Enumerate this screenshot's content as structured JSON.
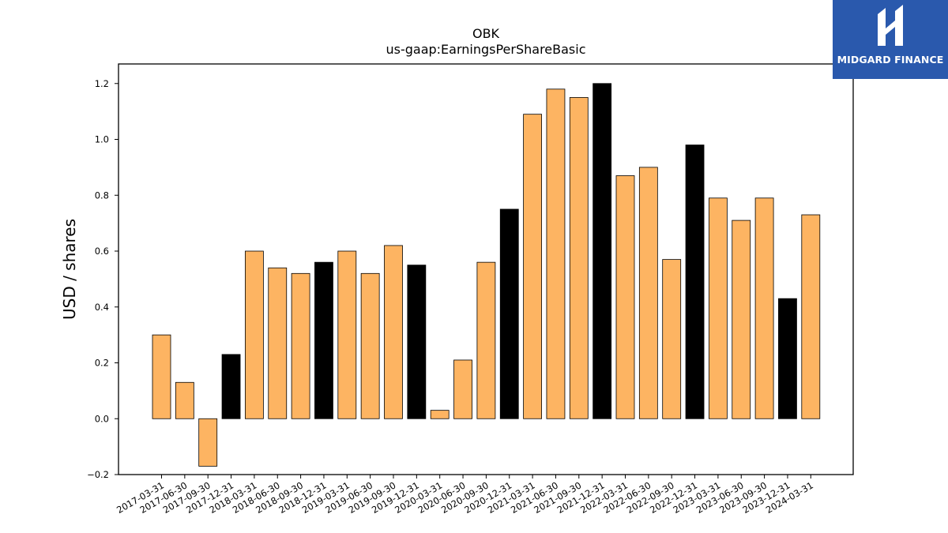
{
  "logo": {
    "text": "MIDGARD FINANCE",
    "bg_color": "#2a59ad",
    "mark_icon": "midgard-mark-icon"
  },
  "chart_data": {
    "type": "bar",
    "title": "OBK",
    "subtitle": "us-gaap:EarningsPerShareBasic",
    "xlabel": "",
    "ylabel": "USD / shares",
    "ylim": [
      -0.2,
      1.27
    ],
    "yticks": [
      -0.2,
      0.0,
      0.2,
      0.4,
      0.6,
      0.8,
      1.0,
      1.2
    ],
    "ytick_labels": [
      "−0.2",
      "0.0",
      "0.2",
      "0.4",
      "0.6",
      "0.8",
      "1.0",
      "1.2"
    ],
    "grid": false,
    "colors": {
      "quarter": "#fdb462",
      "year_end": "#000000",
      "edge": "#000000"
    },
    "categories": [
      "2017-03-31",
      "2017-06-30",
      "2017-09-30",
      "2017-12-31",
      "2018-03-31",
      "2018-06-30",
      "2018-09-30",
      "2018-12-31",
      "2019-03-31",
      "2019-06-30",
      "2019-09-30",
      "2019-12-31",
      "2020-03-31",
      "2020-06-30",
      "2020-09-30",
      "2020-12-31",
      "2021-03-31",
      "2021-06-30",
      "2021-09-30",
      "2021-12-31",
      "2022-03-31",
      "2022-06-30",
      "2022-09-30",
      "2022-12-31",
      "2023-03-31",
      "2023-06-30",
      "2023-09-30",
      "2023-12-31",
      "2024-03-31"
    ],
    "values": [
      0.3,
      0.13,
      -0.17,
      0.23,
      0.6,
      0.54,
      0.52,
      0.56,
      0.6,
      0.52,
      0.62,
      0.55,
      0.03,
      0.21,
      0.56,
      0.75,
      1.09,
      1.18,
      1.15,
      1.2,
      0.87,
      0.9,
      0.57,
      0.98,
      0.79,
      0.71,
      0.79,
      0.43,
      0.73
    ],
    "year_end": [
      false,
      false,
      false,
      true,
      false,
      false,
      false,
      true,
      false,
      false,
      false,
      true,
      false,
      false,
      false,
      true,
      false,
      false,
      false,
      true,
      false,
      false,
      false,
      true,
      false,
      false,
      false,
      true,
      false
    ]
  }
}
